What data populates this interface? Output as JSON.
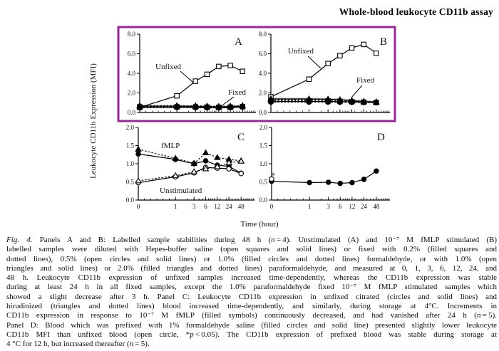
{
  "page": {
    "title": "Whole-blood leukocyte CD11b assay"
  },
  "figure": {
    "y_axis_label": "Leukocyte CD11b Expression (MFI)",
    "x_axis_label": "Time (hour)",
    "x_tick_labels": [
      "0",
      "1",
      "3",
      "6",
      "12",
      "24",
      "48"
    ],
    "highlight_box_color": "#922B90",
    "line_color": "#000000",
    "overlap_band_color": "#bdbdbd"
  },
  "chart_data": [
    {
      "panel": "A",
      "type": "line",
      "x": [
        0,
        1,
        3,
        6,
        12,
        24,
        48
      ],
      "ylim": [
        0,
        8
      ],
      "yticks": [
        "0.0",
        "2.0",
        "4.0",
        "6.0",
        "8.0"
      ],
      "xlabel": "Time (hour)",
      "ylabel": "Leukocyte CD11b Expression (MFI)",
      "annotations": [
        "Unfixed",
        "Fixed"
      ],
      "series": [
        {
          "name": "overlap-band",
          "marker": "none",
          "line": "solid",
          "color": "#bdbdbd",
          "width": 3,
          "values": [
            0.63,
            0.63,
            0.62,
            0.6,
            0.58,
            0.6,
            0.64
          ]
        },
        {
          "name": "Unfixed (Hepes-buffer saline)",
          "marker": "square-open",
          "line": "solid",
          "values": [
            0.52,
            1.7,
            3.2,
            3.9,
            4.7,
            4.8,
            4.2
          ]
        },
        {
          "name": "0.2% formaldehyde fixed",
          "marker": "square-filled",
          "line": "dotted",
          "values": [
            0.58,
            0.58,
            0.57,
            0.55,
            0.53,
            0.55,
            0.6
          ]
        },
        {
          "name": "0.5% formaldehyde fixed",
          "marker": "circle-open",
          "line": "solid",
          "values": [
            0.5,
            0.51,
            0.5,
            0.48,
            0.47,
            0.49,
            0.55
          ]
        },
        {
          "name": "1.0% formaldehyde fixed",
          "marker": "circle-filled",
          "line": "dotted",
          "values": [
            0.55,
            0.55,
            0.54,
            0.52,
            0.51,
            0.53,
            0.58
          ]
        },
        {
          "name": "1.0% paraformaldehyde fixed",
          "marker": "triangle-open",
          "line": "solid",
          "values": [
            0.64,
            0.64,
            0.62,
            0.6,
            0.58,
            0.6,
            0.66
          ]
        },
        {
          "name": "2.0% paraformaldehyde fixed",
          "marker": "triangle-filled",
          "line": "dotted",
          "values": [
            0.7,
            0.7,
            0.68,
            0.65,
            0.62,
            0.64,
            0.7
          ]
        }
      ]
    },
    {
      "panel": "B",
      "type": "line",
      "x": [
        0,
        1,
        3,
        6,
        12,
        24,
        48
      ],
      "ylim": [
        0,
        8
      ],
      "yticks": [
        "0.0",
        "2.0",
        "4.0",
        "6.0",
        "8.0"
      ],
      "xlabel": "Time (hour)",
      "ylabel": "Leukocyte CD11b Expression (MFI)",
      "annotations": [
        "Unfixed",
        "Fixed"
      ],
      "series": [
        {
          "name": "overlap-band",
          "marker": "none",
          "line": "solid",
          "color": "#bdbdbd",
          "width": 3,
          "values": [
            1.4,
            1.4,
            1.38,
            1.33,
            1.25,
            1.15,
            1.08
          ]
        },
        {
          "name": "Unfixed (Hepes-buffer saline)",
          "marker": "square-open",
          "line": "solid",
          "values": [
            1.6,
            3.4,
            5.0,
            5.8,
            6.6,
            6.95,
            6.05
          ]
        },
        {
          "name": "0.2% formaldehyde fixed",
          "marker": "square-filled",
          "line": "dotted",
          "values": [
            1.18,
            1.18,
            1.17,
            1.14,
            1.1,
            1.06,
            1.02
          ]
        },
        {
          "name": "0.5% formaldehyde fixed",
          "marker": "circle-open",
          "line": "solid",
          "values": [
            1.12,
            1.12,
            1.12,
            1.1,
            1.08,
            1.05,
            1.03
          ]
        },
        {
          "name": "1.0% formaldehyde fixed",
          "marker": "circle-filled",
          "line": "dotted",
          "values": [
            1.06,
            1.06,
            1.06,
            1.05,
            1.04,
            1.02,
            1.0
          ]
        },
        {
          "name": "1.0% paraformaldehyde fixed",
          "marker": "triangle-open",
          "line": "solid",
          "values": [
            1.38,
            1.38,
            1.36,
            1.3,
            1.22,
            1.12,
            1.08
          ]
        },
        {
          "name": "2.0% paraformaldehyde fixed",
          "marker": "triangle-filled",
          "line": "dotted",
          "values": [
            1.3,
            1.3,
            1.28,
            1.24,
            1.16,
            1.1,
            1.06
          ]
        }
      ]
    },
    {
      "panel": "C",
      "type": "line",
      "x": [
        0,
        1,
        3,
        6,
        12,
        24,
        48
      ],
      "ylim": [
        0,
        2
      ],
      "yticks": [
        "0.0",
        "0.5",
        "1.0",
        "1.5",
        "2.0"
      ],
      "xlabel": "Time (hour)",
      "ylabel": "Leukocyte CD11b Expression (MFI)",
      "annotations": [
        "fMLP",
        "Unstimulated"
      ],
      "series": [
        {
          "name": "fMLP citrated",
          "marker": "circle-filled",
          "line": "solid",
          "values": [
            1.27,
            1.12,
            1.0,
            1.08,
            0.96,
            0.93,
            0.74
          ]
        },
        {
          "name": "fMLP hirudinized",
          "marker": "triangle-filled",
          "line": "dotted",
          "values": [
            1.4,
            1.15,
            1.01,
            1.3,
            1.17,
            1.12,
            1.08
          ]
        },
        {
          "name": "Unstimulated citrated",
          "marker": "circle-open",
          "line": "solid",
          "values": [
            0.48,
            0.64,
            0.75,
            0.9,
            0.88,
            0.86,
            0.73
          ]
        },
        {
          "name": "Unstimulated hirudinized",
          "marker": "triangle-open",
          "line": "dotted",
          "values": [
            0.53,
            0.67,
            0.78,
            0.86,
            0.92,
            1.03,
            1.07
          ]
        }
      ]
    },
    {
      "panel": "D",
      "type": "line",
      "x": [
        0,
        1,
        3,
        6,
        12,
        24,
        48
      ],
      "ylim": [
        0,
        2
      ],
      "yticks": [
        "0.0",
        "0.5",
        "1.0",
        "1.5",
        "2.0"
      ],
      "xlabel": "Time (hour)",
      "ylabel": "Leukocyte CD11b Expression (MFI)",
      "annotations": [
        "*"
      ],
      "series": [
        {
          "name": "Prefixed 1% formaldehyde",
          "marker": "circle-filled",
          "line": "solid",
          "values": [
            0.52,
            0.48,
            0.49,
            0.46,
            0.48,
            0.57,
            0.8
          ]
        },
        {
          "name": "Unfixed blood (t=0)",
          "marker": "circle-open",
          "line": "none",
          "values": [
            0.58,
            null,
            null,
            null,
            null,
            null,
            null
          ]
        }
      ]
    }
  ],
  "caption": {
    "lines": [
      [
        {
          "t": "Fig. 4.",
          "i": true
        },
        {
          "t": " Panels A and B: Labelled sample stabilities during 48 h ("
        },
        {
          "t": "n",
          "i": true
        },
        {
          "t": " = 4). Unstimulated (A) and 10⁻⁷ M fMLP stimulated (B)"
        }
      ],
      [
        {
          "t": "labelled samples were diluted with Hepes-buffer saline (open squares and solid lines) or fixed with 0.2% (filled squares and"
        }
      ],
      [
        {
          "t": "dotted lines), 0.5% (open circles and solid lines) or 1.0% (filled circles and dotted lines) formaldehyde, or with 1.0% (open"
        }
      ],
      [
        {
          "t": "triangles and solid lines) or 2.0% (filled triangles and dotted lines) paraformaldehyde, and measured at 0, 1, 3, 6, 12, 24, and"
        }
      ],
      [
        {
          "t": "48 h. Leukocyte CD11b expression of unfixed samples increased time-dependently, whereas the CD11b expression was stable"
        }
      ],
      [
        {
          "t": "during at least 24 h in all fixed samples, except the 1.0% paraformaldehyde fixed 10⁻⁷ M fMLP stimulated samples which"
        }
      ],
      [
        {
          "t": "showed a slight decrease after 3 h. Panel C: Leukocyte CD11b expression in unfixed citrated (circles and solid lines) and"
        }
      ],
      [
        {
          "t": "hirudinized (triangles and dotted lines) blood increased time-dependently, and similarly, during storage at 4°C. Increments in"
        }
      ],
      [
        {
          "t": "CD11b expression in response to 10⁻⁷ M fMLP (filled symbols) continuously decreased, and had vanished after 24 h ("
        },
        {
          "t": "n",
          "i": true
        },
        {
          "t": " = 5)."
        }
      ],
      [
        {
          "t": "Panel D: Blood which was prefixed with 1% formaldehyde saline (filled circles and solid line) presented slightly lower leukocyte"
        }
      ],
      [
        {
          "t": "CD11b MFI than unfixed blood (open circle, *"
        },
        {
          "t": "p",
          "i": true
        },
        {
          "t": " < 0.05). The CD11b expression of prefixed blood was stable during storage at"
        }
      ],
      [
        {
          "t": "4 °C for 12 h, but increased thereafter ("
        },
        {
          "t": "n",
          "i": true
        },
        {
          "t": " = 5)."
        }
      ]
    ]
  }
}
